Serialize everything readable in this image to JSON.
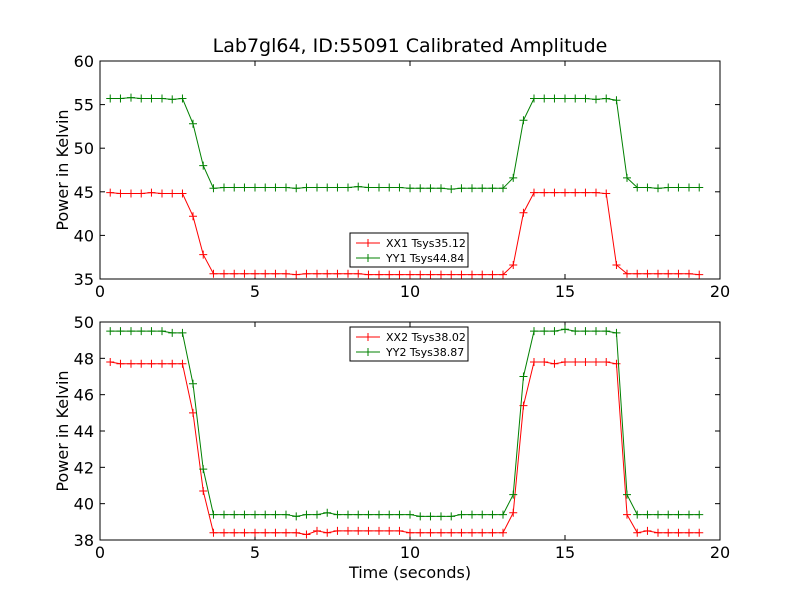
{
  "chart_data": {
    "title": "Lab7gl64, ID:55091 Calibrated Amplitude",
    "xlabel": "Time (seconds)",
    "colors": {
      "XX": "#ff0000",
      "YY": "#008000"
    },
    "x": [
      0.33,
      0.66,
      1.0,
      1.33,
      1.66,
      2.0,
      2.33,
      2.66,
      3.0,
      3.33,
      3.66,
      4.0,
      4.33,
      4.66,
      5.0,
      5.33,
      5.66,
      6.0,
      6.33,
      6.66,
      7.0,
      7.33,
      7.66,
      8.0,
      8.33,
      8.66,
      9.0,
      9.33,
      9.66,
      10.0,
      10.33,
      10.66,
      11.0,
      11.33,
      11.66,
      12.0,
      12.33,
      12.66,
      13.0,
      13.33,
      13.66,
      14.0,
      14.33,
      14.66,
      15.0,
      15.33,
      15.66,
      16.0,
      16.33,
      16.66,
      17.0,
      17.33,
      17.66,
      18.0,
      18.33,
      18.66,
      19.0,
      19.33
    ],
    "panels": [
      {
        "type": "line",
        "ylabel": "Power in Kelvin",
        "xlim": [
          0,
          20
        ],
        "ylim": [
          35,
          60
        ],
        "xticks": [
          0,
          5,
          10,
          15,
          20
        ],
        "yticks": [
          35,
          40,
          45,
          50,
          55,
          60
        ],
        "legend_position": "lower-center",
        "series": [
          {
            "name": "XX1 Tsys35.12",
            "color_key": "XX",
            "values": [
              44.9,
              44.8,
              44.8,
              44.8,
              44.9,
              44.8,
              44.8,
              44.8,
              42.2,
              37.8,
              35.6,
              35.6,
              35.6,
              35.6,
              35.6,
              35.6,
              35.6,
              35.6,
              35.5,
              35.6,
              35.6,
              35.6,
              35.6,
              35.6,
              35.6,
              35.5,
              35.5,
              35.5,
              35.5,
              35.5,
              35.5,
              35.5,
              35.5,
              35.5,
              35.5,
              35.5,
              35.5,
              35.5,
              35.5,
              36.6,
              42.6,
              44.9,
              44.9,
              44.9,
              44.9,
              44.9,
              44.9,
              44.9,
              44.8,
              36.6,
              35.6,
              35.6,
              35.6,
              35.6,
              35.6,
              35.6,
              35.6,
              35.5
            ]
          },
          {
            "name": "YY1 Tsys44.84",
            "color_key": "YY",
            "values": [
              55.7,
              55.7,
              55.8,
              55.7,
              55.7,
              55.7,
              55.6,
              55.7,
              52.8,
              48.0,
              45.4,
              45.5,
              45.5,
              45.5,
              45.5,
              45.5,
              45.5,
              45.5,
              45.4,
              45.5,
              45.5,
              45.5,
              45.5,
              45.5,
              45.6,
              45.5,
              45.5,
              45.5,
              45.5,
              45.4,
              45.4,
              45.4,
              45.4,
              45.3,
              45.4,
              45.4,
              45.4,
              45.4,
              45.4,
              46.6,
              53.2,
              55.7,
              55.7,
              55.7,
              55.7,
              55.7,
              55.7,
              55.6,
              55.7,
              55.5,
              46.6,
              45.5,
              45.5,
              45.4,
              45.5,
              45.5,
              45.5,
              45.5
            ]
          }
        ]
      },
      {
        "type": "line",
        "ylabel": "Power in Kelvin",
        "xlim": [
          0,
          20
        ],
        "ylim": [
          38,
          50
        ],
        "xticks": [
          0,
          5,
          10,
          15,
          20
        ],
        "yticks": [
          38,
          40,
          42,
          44,
          46,
          48,
          50
        ],
        "legend_position": "upper-center",
        "series": [
          {
            "name": "XX2 Tsys38.02",
            "color_key": "XX",
            "values": [
              47.8,
              47.7,
              47.7,
              47.7,
              47.7,
              47.7,
              47.7,
              47.7,
              45.0,
              40.7,
              38.4,
              38.4,
              38.4,
              38.4,
              38.4,
              38.4,
              38.4,
              38.4,
              38.4,
              38.3,
              38.5,
              38.4,
              38.5,
              38.5,
              38.5,
              38.5,
              38.5,
              38.5,
              38.5,
              38.4,
              38.4,
              38.4,
              38.4,
              38.4,
              38.4,
              38.4,
              38.4,
              38.4,
              38.4,
              39.5,
              45.4,
              47.8,
              47.8,
              47.7,
              47.8,
              47.8,
              47.8,
              47.8,
              47.8,
              47.7,
              39.4,
              38.4,
              38.5,
              38.4,
              38.4,
              38.4,
              38.4,
              38.4
            ]
          },
          {
            "name": "YY2 Tsys38.87",
            "color_key": "YY",
            "values": [
              49.5,
              49.5,
              49.5,
              49.5,
              49.5,
              49.5,
              49.4,
              49.4,
              46.6,
              41.9,
              39.4,
              39.4,
              39.4,
              39.4,
              39.4,
              39.4,
              39.4,
              39.4,
              39.3,
              39.4,
              39.4,
              39.5,
              39.4,
              39.4,
              39.4,
              39.4,
              39.4,
              39.4,
              39.4,
              39.4,
              39.3,
              39.3,
              39.3,
              39.3,
              39.4,
              39.4,
              39.4,
              39.4,
              39.4,
              40.5,
              47.0,
              49.5,
              49.5,
              49.5,
              49.6,
              49.5,
              49.5,
              49.5,
              49.5,
              49.4,
              40.5,
              39.4,
              39.4,
              39.4,
              39.4,
              39.4,
              39.4,
              39.4
            ]
          }
        ]
      }
    ]
  }
}
